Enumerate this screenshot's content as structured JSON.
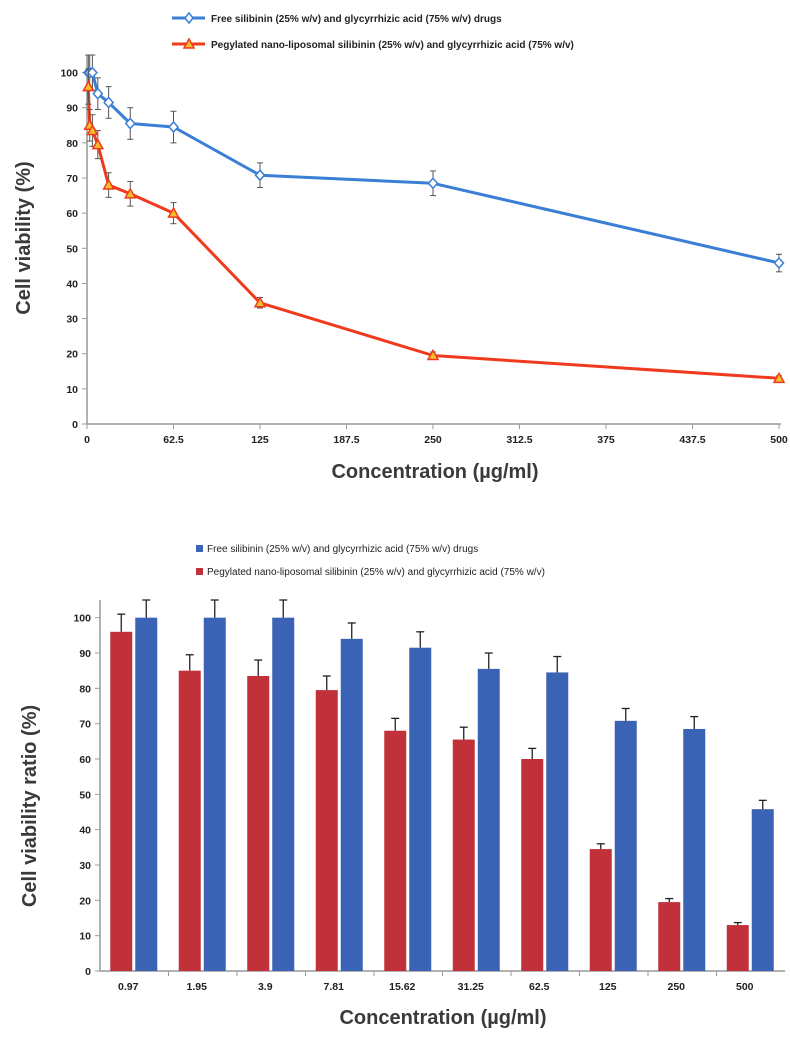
{
  "chart_data": [
    {
      "type": "line",
      "xlabel": "Concentration (µg/ml)",
      "ylabel": "Cell viability (%)",
      "xlim": [
        0,
        500
      ],
      "ylim": [
        0,
        105
      ],
      "xticks": [
        "0",
        "62.5",
        "125",
        "187.5",
        "250",
        "312.5",
        "375",
        "437.5",
        "500"
      ],
      "yticks": [
        "0",
        "10",
        "20",
        "30",
        "40",
        "50",
        "60",
        "70",
        "80",
        "90",
        "100"
      ],
      "grid": false,
      "legend_position": "top",
      "x": [
        0.97,
        1.95,
        3.9,
        7.81,
        15.62,
        31.25,
        62.5,
        125,
        250,
        500
      ],
      "series": [
        {
          "name": "Free silibinin (25% w/v) and glycyrrhizic acid (75% w/v) drugs",
          "color": "#3a7fd5",
          "marker": "diamond",
          "values": [
            100,
            100,
            100,
            94,
            91.5,
            85.5,
            84.5,
            70.8,
            68.5,
            45.8
          ],
          "errors": [
            5,
            5,
            5,
            4.5,
            4.5,
            4.5,
            4.5,
            3.5,
            3.5,
            2.5
          ]
        },
        {
          "name": "Pegylated nano-liposomal silibinin (25% w/v) and glycyrrhizic acid (75% w/v)",
          "color": "#f03a1e",
          "marker": "triangle",
          "values": [
            96,
            85,
            83.5,
            79.5,
            68,
            65.5,
            60,
            34.5,
            19.5,
            13
          ],
          "errors": [
            5,
            4.5,
            4.5,
            4,
            3.5,
            3.5,
            3,
            1.5,
            1,
            0.7
          ]
        }
      ]
    },
    {
      "type": "bar",
      "xlabel": "Concentration (µg/ml)",
      "ylabel": "Cell viability ratio  (%)",
      "ylim": [
        0,
        105
      ],
      "yticks": [
        "0",
        "10",
        "20",
        "30",
        "40",
        "50",
        "60",
        "70",
        "80",
        "90",
        "100"
      ],
      "grid": false,
      "legend_position": "top",
      "categories": [
        "0.97",
        "1.95",
        "3.9",
        "7.81",
        "15.62",
        "31.25",
        "62.5",
        "125",
        "250",
        "500"
      ],
      "series": [
        {
          "name": "Pegylated nano-liposomal silibinin (25% w/v) and glycyrrhizic acid (75% w/v)",
          "color": "#c0313a",
          "values": [
            96,
            85,
            83.5,
            79.5,
            68,
            65.5,
            60,
            34.5,
            19.5,
            13
          ],
          "errors": [
            5,
            4.5,
            4.5,
            4,
            3.5,
            3.5,
            3,
            1.5,
            1,
            0.7
          ]
        },
        {
          "name": "Free silibinin (25% w/v) and glycyrrhizic acid (75%  w/v) drugs",
          "color": "#3a62b5",
          "values": [
            100,
            100,
            100,
            94,
            91.5,
            85.5,
            84.5,
            70.8,
            68.5,
            45.8
          ],
          "errors": [
            5,
            5,
            5,
            4.5,
            4.5,
            4.5,
            4.5,
            3.5,
            3.5,
            2.5
          ]
        }
      ]
    }
  ],
  "legend_top": {
    "item1": "Free silibinin (25% w/v) and glycyrrhizic acid (75%  w/v) drugs",
    "item2": "Pegylated nano-liposomal silibinin (25% w/v) and glycyrrhizic acid (75% w/v)"
  },
  "legend_bottom": {
    "item1": "Free silibinin (25% w/v) and glycyrrhizic acid (75%  w/v) drugs",
    "item2": "Pegylated nano-liposomal silibinin (25% w/v) and glycyrrhizic acid (75% w/v)"
  },
  "colors": {
    "line_free": "#3a7fd5",
    "line_peg": "#f03a1e",
    "bar_free": "#3a62b5",
    "bar_peg": "#c0313a"
  }
}
